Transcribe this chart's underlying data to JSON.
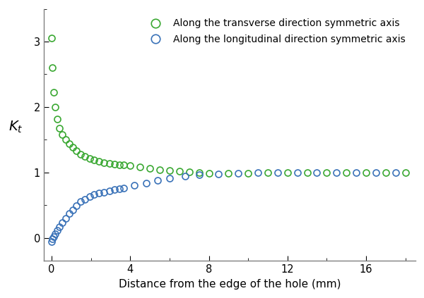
{
  "title": "",
  "xlabel": "Distance from the edge of the hole (mm)",
  "ylabel": "$K_t$",
  "xlim": [
    -0.4,
    18.5
  ],
  "ylim": [
    -0.35,
    3.5
  ],
  "yticks": [
    0,
    1.0,
    2.0,
    3.0
  ],
  "xticks": [
    0,
    4,
    8,
    12,
    16
  ],
  "legend_transverse": "Along the transverse direction symmetric axis",
  "legend_longitudinal": "Along the longitudinal direction symmetric axis",
  "transverse_color": "#3aa832",
  "longitudinal_color": "#3a72b8",
  "marker_size": 6.5,
  "transverse_x": [
    0.0,
    0.04,
    0.1,
    0.18,
    0.28,
    0.4,
    0.54,
    0.7,
    0.88,
    1.06,
    1.26,
    1.47,
    1.7,
    1.93,
    2.17,
    2.42,
    2.67,
    2.93,
    3.18,
    3.43,
    3.68,
    4.0,
    4.5,
    5.0,
    5.5,
    6.0,
    6.5,
    7.0,
    7.5,
    8.0,
    9.0,
    10.0,
    11.0,
    12.0,
    13.0,
    14.0,
    15.0,
    16.0,
    17.0,
    18.0
  ],
  "transverse_y": [
    3.05,
    2.6,
    2.22,
    2.0,
    1.82,
    1.68,
    1.58,
    1.5,
    1.44,
    1.38,
    1.33,
    1.28,
    1.24,
    1.21,
    1.19,
    1.17,
    1.15,
    1.14,
    1.13,
    1.12,
    1.11,
    1.1,
    1.08,
    1.06,
    1.04,
    1.03,
    1.02,
    1.01,
    1.0,
    0.99,
    0.99,
    0.99,
    1.0,
    1.0,
    1.0,
    1.0,
    1.0,
    1.0,
    1.0,
    1.0
  ],
  "longitudinal_x": [
    0.0,
    0.04,
    0.1,
    0.18,
    0.28,
    0.4,
    0.54,
    0.7,
    0.88,
    1.06,
    1.26,
    1.47,
    1.7,
    1.93,
    2.17,
    2.42,
    2.67,
    2.93,
    3.18,
    3.43,
    3.68,
    4.2,
    4.8,
    5.4,
    6.0,
    6.8,
    7.5,
    8.5,
    9.5,
    10.5,
    11.5,
    12.5,
    13.5,
    14.5,
    15.5,
    16.5,
    17.5
  ],
  "longitudinal_y": [
    -0.06,
    -0.02,
    0.02,
    0.06,
    0.11,
    0.17,
    0.23,
    0.3,
    0.37,
    0.43,
    0.49,
    0.55,
    0.59,
    0.63,
    0.66,
    0.68,
    0.7,
    0.72,
    0.74,
    0.75,
    0.76,
    0.8,
    0.84,
    0.88,
    0.91,
    0.94,
    0.96,
    0.98,
    0.99,
    1.0,
    1.0,
    1.0,
    1.0,
    1.0,
    1.0,
    1.0,
    1.0
  ],
  "spine_color": "#808080",
  "fig_width": 6.0,
  "fig_height": 4.23,
  "dpi": 100
}
